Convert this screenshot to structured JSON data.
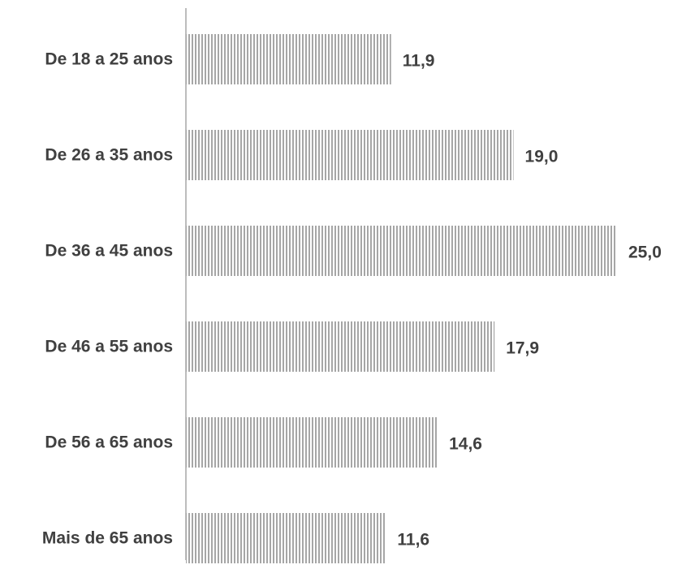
{
  "chart_data": {
    "type": "bar",
    "orientation": "horizontal",
    "categories": [
      "De 18 a 25 anos",
      "De 26 a 35 anos",
      "De 36 a 45 anos",
      "De 46 a 55 anos",
      "De 56 a 65 anos",
      "Mais de 65 anos"
    ],
    "values": [
      11.9,
      19.0,
      25.0,
      17.9,
      14.6,
      11.6
    ],
    "value_labels": [
      "11,9",
      "19,0",
      "25,0",
      "17,9",
      "14,6",
      "11,6"
    ],
    "xlim": [
      0,
      25
    ],
    "grid": false,
    "legend": "none",
    "bar_fill": "vertical-hatch",
    "colors": {
      "bar_stripe": "#a6a6a6",
      "bar_background": "#ffffff",
      "axis": "#a6a6a6",
      "text": "#404040"
    }
  }
}
